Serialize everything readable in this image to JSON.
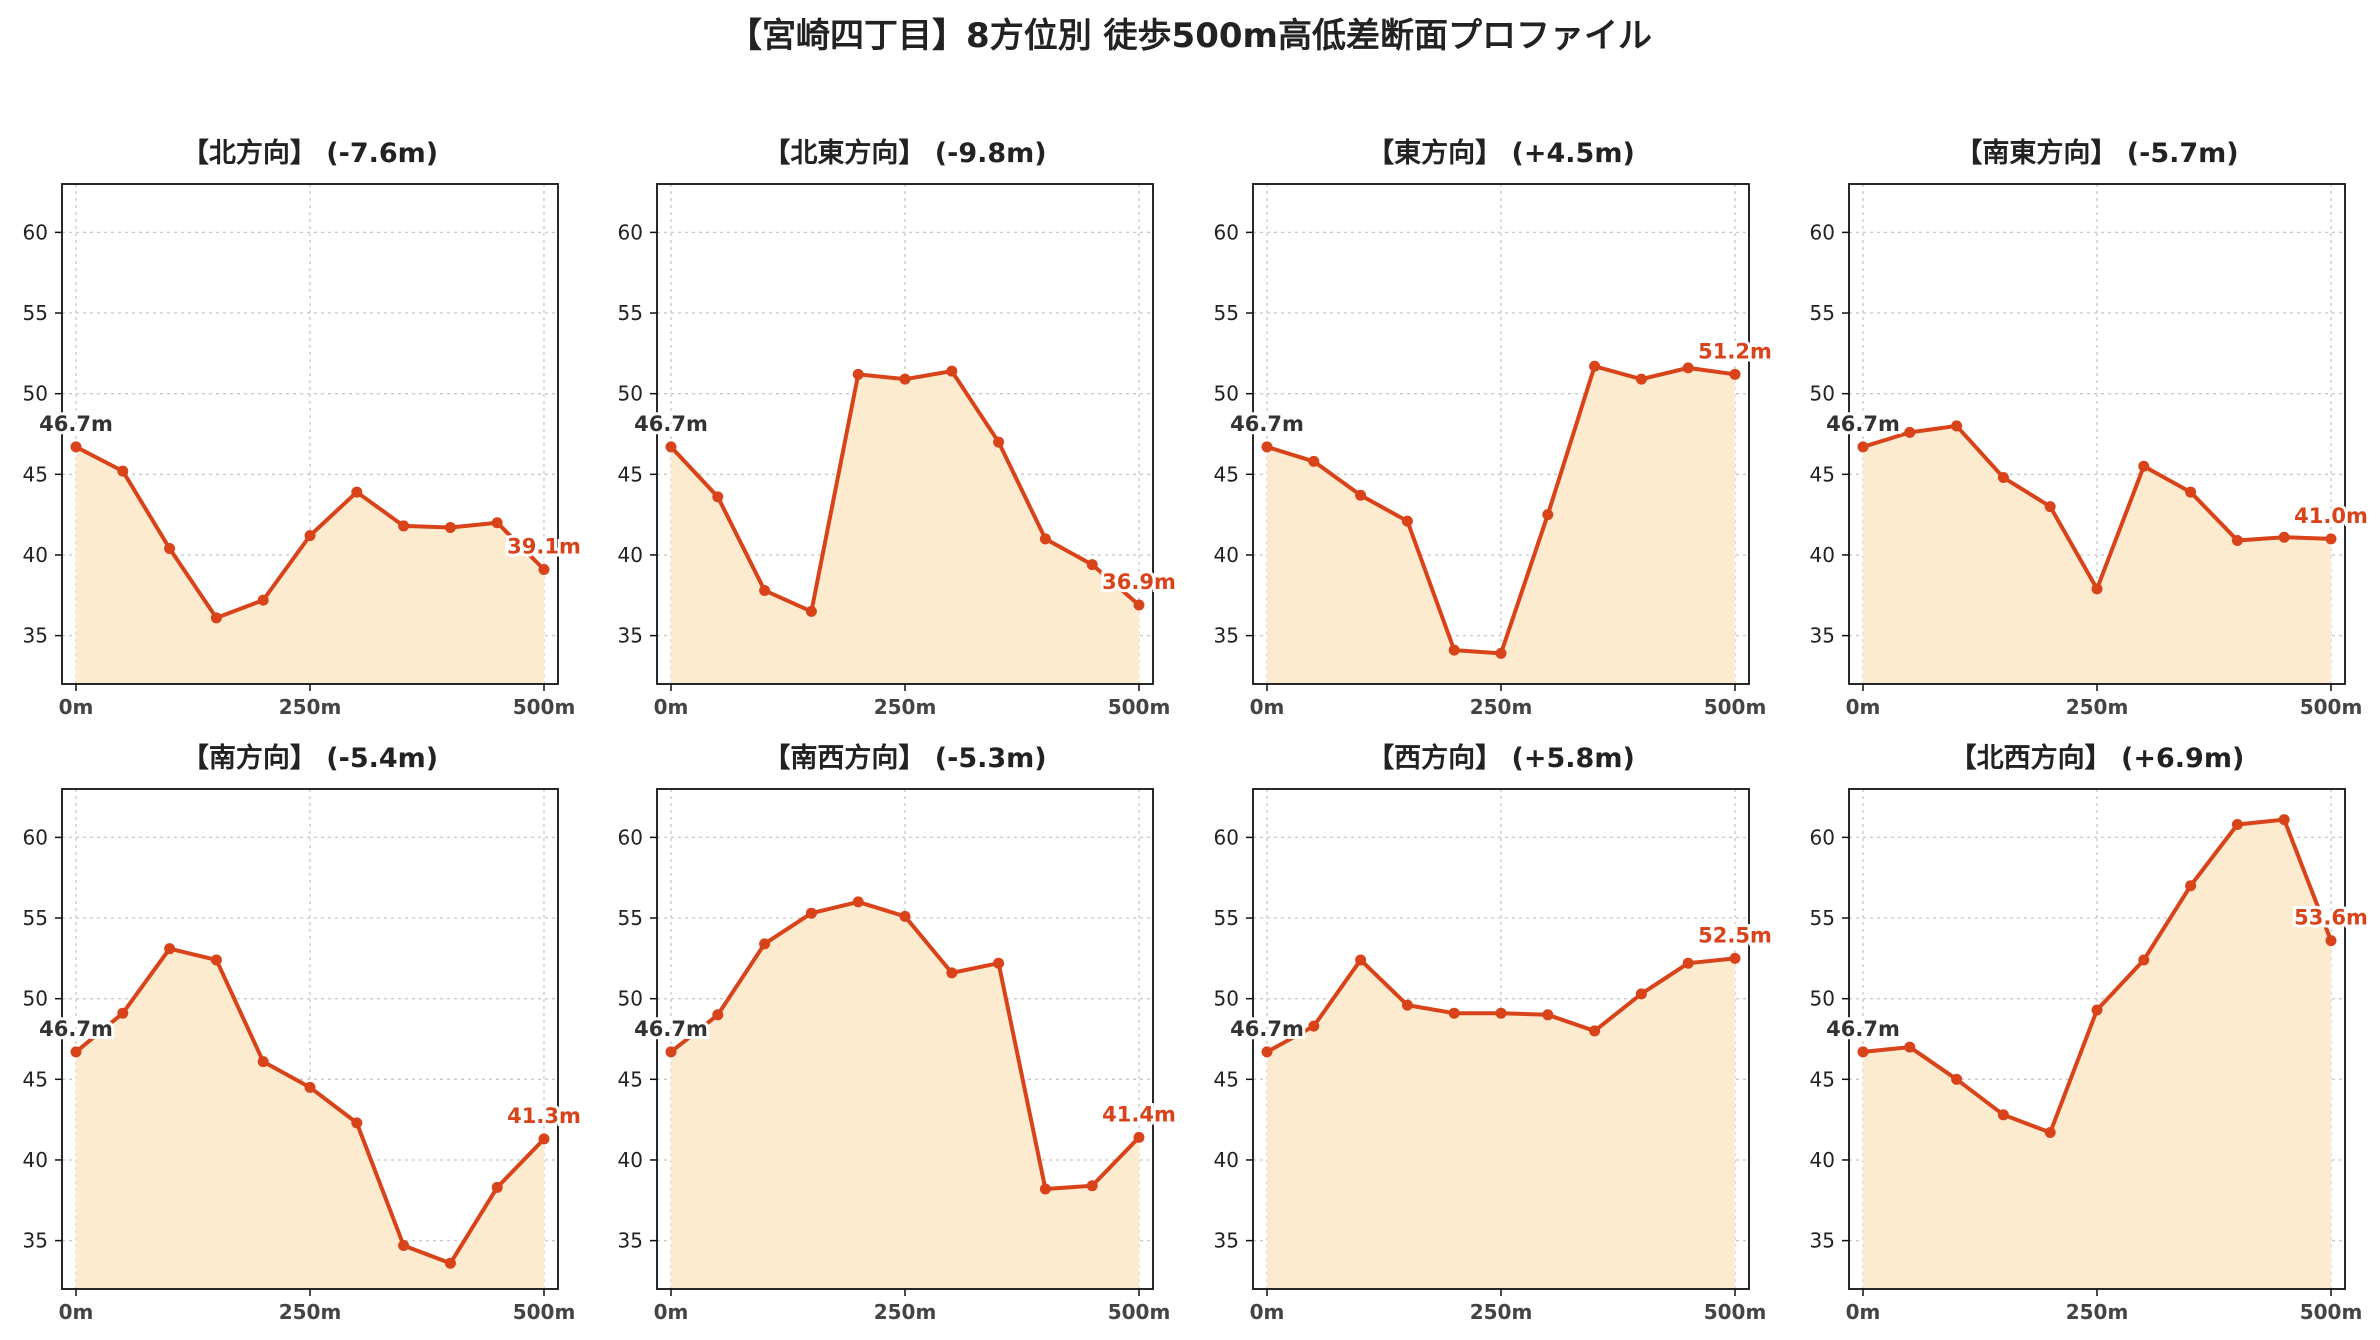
{
  "title": "【宮崎四丁目】8方位別 徒歩500m高低差断面プロファイル",
  "colors": {
    "line": "#d8431a",
    "fill": "#fdebd0",
    "start_label": "#333333",
    "end_label": "#d8431a",
    "grid": "#c8c8c8"
  },
  "chart_data": [
    {
      "type": "area",
      "title": "【北方向】 (-7.6m)",
      "x": [
        0,
        50,
        100,
        150,
        200,
        250,
        300,
        350,
        400,
        450,
        500
      ],
      "values": [
        46.7,
        45.2,
        40.4,
        36.1,
        37.2,
        41.2,
        43.9,
        41.8,
        41.7,
        42.0,
        39.1
      ],
      "start_label": "46.7m",
      "end_label": "39.1m",
      "ylim": [
        32,
        63
      ],
      "yticks": [
        35,
        40,
        45,
        50,
        55,
        60
      ],
      "xticks": [
        0,
        250,
        500
      ],
      "xtick_labels": [
        "0m",
        "250m",
        "500m"
      ],
      "grid": true
    },
    {
      "type": "area",
      "title": "【北東方向】 (-9.8m)",
      "x": [
        0,
        50,
        100,
        150,
        200,
        250,
        300,
        350,
        400,
        450,
        500
      ],
      "values": [
        46.7,
        43.6,
        37.8,
        36.5,
        51.2,
        50.9,
        51.4,
        47.0,
        41.0,
        39.4,
        36.9
      ],
      "start_label": "46.7m",
      "end_label": "36.9m",
      "ylim": [
        32,
        63
      ],
      "yticks": [
        35,
        40,
        45,
        50,
        55,
        60
      ],
      "xticks": [
        0,
        250,
        500
      ],
      "xtick_labels": [
        "0m",
        "250m",
        "500m"
      ],
      "grid": true
    },
    {
      "type": "area",
      "title": "【東方向】 (+4.5m)",
      "x": [
        0,
        50,
        100,
        150,
        200,
        250,
        300,
        350,
        400,
        450,
        500
      ],
      "values": [
        46.7,
        45.8,
        43.7,
        42.1,
        34.1,
        33.9,
        42.5,
        51.7,
        50.9,
        51.6,
        51.2
      ],
      "start_label": "46.7m",
      "end_label": "51.2m",
      "ylim": [
        32,
        63
      ],
      "yticks": [
        35,
        40,
        45,
        50,
        55,
        60
      ],
      "xticks": [
        0,
        250,
        500
      ],
      "xtick_labels": [
        "0m",
        "250m",
        "500m"
      ],
      "grid": true
    },
    {
      "type": "area",
      "title": "【南東方向】 (-5.7m)",
      "x": [
        0,
        50,
        100,
        150,
        200,
        250,
        300,
        350,
        400,
        450,
        500
      ],
      "values": [
        46.7,
        47.6,
        48.0,
        44.8,
        43.0,
        37.9,
        45.5,
        43.9,
        40.9,
        41.1,
        41.0
      ],
      "start_label": "46.7m",
      "end_label": "41.0m",
      "ylim": [
        32,
        63
      ],
      "yticks": [
        35,
        40,
        45,
        50,
        55,
        60
      ],
      "xticks": [
        0,
        250,
        500
      ],
      "xtick_labels": [
        "0m",
        "250m",
        "500m"
      ],
      "grid": true
    },
    {
      "type": "area",
      "title": "【南方向】 (-5.4m)",
      "x": [
        0,
        50,
        100,
        150,
        200,
        250,
        300,
        350,
        400,
        450,
        500
      ],
      "values": [
        46.7,
        49.1,
        53.1,
        52.4,
        46.1,
        44.5,
        42.3,
        34.7,
        33.6,
        38.3,
        41.3
      ],
      "start_label": "46.7m",
      "end_label": "41.3m",
      "ylim": [
        32,
        63
      ],
      "yticks": [
        35,
        40,
        45,
        50,
        55,
        60
      ],
      "xticks": [
        0,
        250,
        500
      ],
      "xtick_labels": [
        "0m",
        "250m",
        "500m"
      ],
      "grid": true
    },
    {
      "type": "area",
      "title": "【南西方向】 (-5.3m)",
      "x": [
        0,
        50,
        100,
        150,
        200,
        250,
        300,
        350,
        400,
        450,
        500
      ],
      "values": [
        46.7,
        49.0,
        53.4,
        55.3,
        56.0,
        55.1,
        51.6,
        52.2,
        38.2,
        38.4,
        41.4
      ],
      "start_label": "46.7m",
      "end_label": "41.4m",
      "ylim": [
        32,
        63
      ],
      "yticks": [
        35,
        40,
        45,
        50,
        55,
        60
      ],
      "xticks": [
        0,
        250,
        500
      ],
      "xtick_labels": [
        "0m",
        "250m",
        "500m"
      ],
      "grid": true
    },
    {
      "type": "area",
      "title": "【西方向】 (+5.8m)",
      "x": [
        0,
        50,
        100,
        150,
        200,
        250,
        300,
        350,
        400,
        450,
        500
      ],
      "values": [
        46.7,
        48.3,
        52.4,
        49.6,
        49.1,
        49.1,
        49.0,
        48.0,
        50.3,
        52.2,
        52.5
      ],
      "start_label": "46.7m",
      "end_label": "52.5m",
      "ylim": [
        32,
        63
      ],
      "yticks": [
        35,
        40,
        45,
        50,
        55,
        60
      ],
      "xticks": [
        0,
        250,
        500
      ],
      "xtick_labels": [
        "0m",
        "250m",
        "500m"
      ],
      "grid": true
    },
    {
      "type": "area",
      "title": "【北西方向】 (+6.9m)",
      "x": [
        0,
        50,
        100,
        150,
        200,
        250,
        300,
        350,
        400,
        450,
        500
      ],
      "values": [
        46.7,
        47.0,
        45.0,
        42.8,
        41.7,
        49.3,
        52.4,
        57.0,
        60.8,
        61.1,
        53.6
      ],
      "start_label": "46.7m",
      "end_label": "53.6m",
      "ylim": [
        32,
        63
      ],
      "yticks": [
        35,
        40,
        45,
        50,
        55,
        60
      ],
      "xticks": [
        0,
        250,
        500
      ],
      "xtick_labels": [
        "0m",
        "250m",
        "500m"
      ],
      "grid": true
    }
  ]
}
